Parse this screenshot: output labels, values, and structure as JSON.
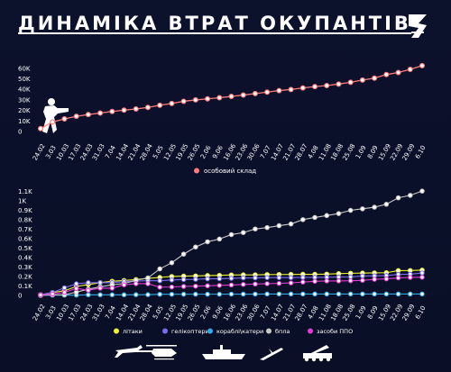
{
  "header": {
    "title": "ДИНАМІКА ВТРАТ ОКУПАНТІВ",
    "logo": "3"
  },
  "colors": {
    "background": "#0b1029",
    "personnel": "#ff7b7b",
    "aircraft": "#f2f23a",
    "helicopters": "#7b6cf0",
    "ships": "#33a9e8",
    "drones": "#c8c8c8",
    "air_defense": "#e53ad6"
  },
  "chart_data": [
    {
      "type": "line",
      "x": [
        "24.02",
        "3.03",
        "10.03",
        "17.03",
        "24.03",
        "31.03",
        "7.04",
        "14.04",
        "21.04",
        "28.04",
        "5.05",
        "12.05",
        "19.05",
        "26.05",
        "2.06",
        "9.06",
        "16.06",
        "23.06",
        "30.06",
        "7.07",
        "14.07",
        "21.07",
        "28.07",
        "4.08",
        "11.08",
        "18.08",
        "25.08",
        "1.09",
        "8.09",
        "15.09",
        "22.09",
        "29.09",
        "6.10"
      ],
      "series": [
        {
          "name": "особовий склад",
          "color": "#ff7b7b",
          "values": [
            2800,
            9000,
            12000,
            14400,
            16100,
            17500,
            19000,
            20300,
            21400,
            22900,
            24900,
            26650,
            28700,
            30000,
            31000,
            32050,
            33350,
            34600,
            36000,
            37400,
            38850,
            39850,
            41350,
            42650,
            43650,
            45050,
            46750,
            48850,
            50650,
            54050,
            56000,
            59000,
            62500
          ]
        }
      ],
      "yticks": [
        "0",
        "10K",
        "20K",
        "30K",
        "40K",
        "50K",
        "60K"
      ],
      "ylim": [
        0,
        65000
      ],
      "legend": [
        "особовий склад"
      ],
      "legend_position": "bottom-center",
      "icon": "soldier-silhouette"
    },
    {
      "type": "line",
      "x": [
        "24.02",
        "3.03",
        "10.03",
        "17.03",
        "24.03",
        "31.03",
        "7.04",
        "14.04",
        "21.04",
        "28.04",
        "5.05",
        "12.05",
        "19.05",
        "26.05",
        "2.06",
        "9.06",
        "16.06",
        "23.06",
        "30.06",
        "7.07",
        "14.07",
        "21.07",
        "28.07",
        "4.08",
        "11.08",
        "18.08",
        "25.08",
        "1.09",
        "8.09",
        "15.09",
        "22.09",
        "29.09",
        "6.10"
      ],
      "series": [
        {
          "name": "літаки",
          "color": "#f2f23a",
          "values": [
            8,
            30,
            49,
            95,
            115,
            135,
            150,
            158,
            168,
            180,
            190,
            200,
            204,
            206,
            210,
            212,
            216,
            217,
            217,
            220,
            221,
            222,
            223,
            223,
            225,
            230,
            234,
            236,
            238,
            240,
            262,
            263,
            267
          ]
        },
        {
          "name": "гелікоптери",
          "color": "#7b6cf0",
          "values": [
            8,
            31,
            81,
            123,
            135,
            135,
            135,
            147,
            151,
            156,
            155,
            163,
            168,
            170,
            175,
            176,
            180,
            185,
            185,
            188,
            188,
            188,
            190,
            191,
            192,
            194,
            196,
            205,
            207,
            210,
            222,
            224,
            237
          ]
        },
        {
          "name": "кораблі\\катери",
          "color": "#33a9e8",
          "values": [
            2,
            3,
            3,
            3,
            7,
            7,
            7,
            7,
            8,
            8,
            12,
            12,
            13,
            13,
            13,
            13,
            14,
            14,
            14,
            15,
            15,
            15,
            15,
            15,
            15,
            15,
            15,
            15,
            15,
            15,
            15,
            15,
            15
          ]
        },
        {
          "name": "бпла",
          "color": "#c8c8c8",
          "values": [
            0,
            7,
            7,
            35,
            66,
            91,
            112,
            126,
            160,
            185,
            280,
            345,
            436,
            511,
            566,
            595,
            642,
            663,
            701,
            716,
            736,
            754,
            800,
            823,
            843,
            864,
            898,
            914,
            931,
            962,
            1030,
            1056,
            1101
          ]
        },
        {
          "name": "засоби ППО",
          "color": "#e53ad6",
          "values": [
            5,
            15,
            32,
            74,
            55,
            77,
            77,
            112,
            124,
            124,
            87,
            89,
            95,
            98,
            102,
            106,
            110,
            116,
            120,
            124,
            127,
            132,
            141,
            149,
            153,
            153,
            155,
            159,
            170,
            175,
            185,
            190,
            192
          ]
        }
      ],
      "yticks": [
        "0",
        "0.1K",
        "0.2K",
        "0.3K",
        "0.4K",
        "0.5K",
        "0.6K",
        "0.7K",
        "0.8K",
        "0.9K",
        "1K",
        "1.1K"
      ],
      "ylim": [
        0,
        1150
      ],
      "legend": [
        "літаки",
        "гелікоптери",
        "кораблі\\катери",
        "бпла",
        "засоби ППО"
      ],
      "legend_position": "bottom",
      "icons": [
        "plane-icon",
        "helicopter-icon",
        "ship-icon",
        "drone-icon",
        "air-defense-icon"
      ]
    }
  ]
}
